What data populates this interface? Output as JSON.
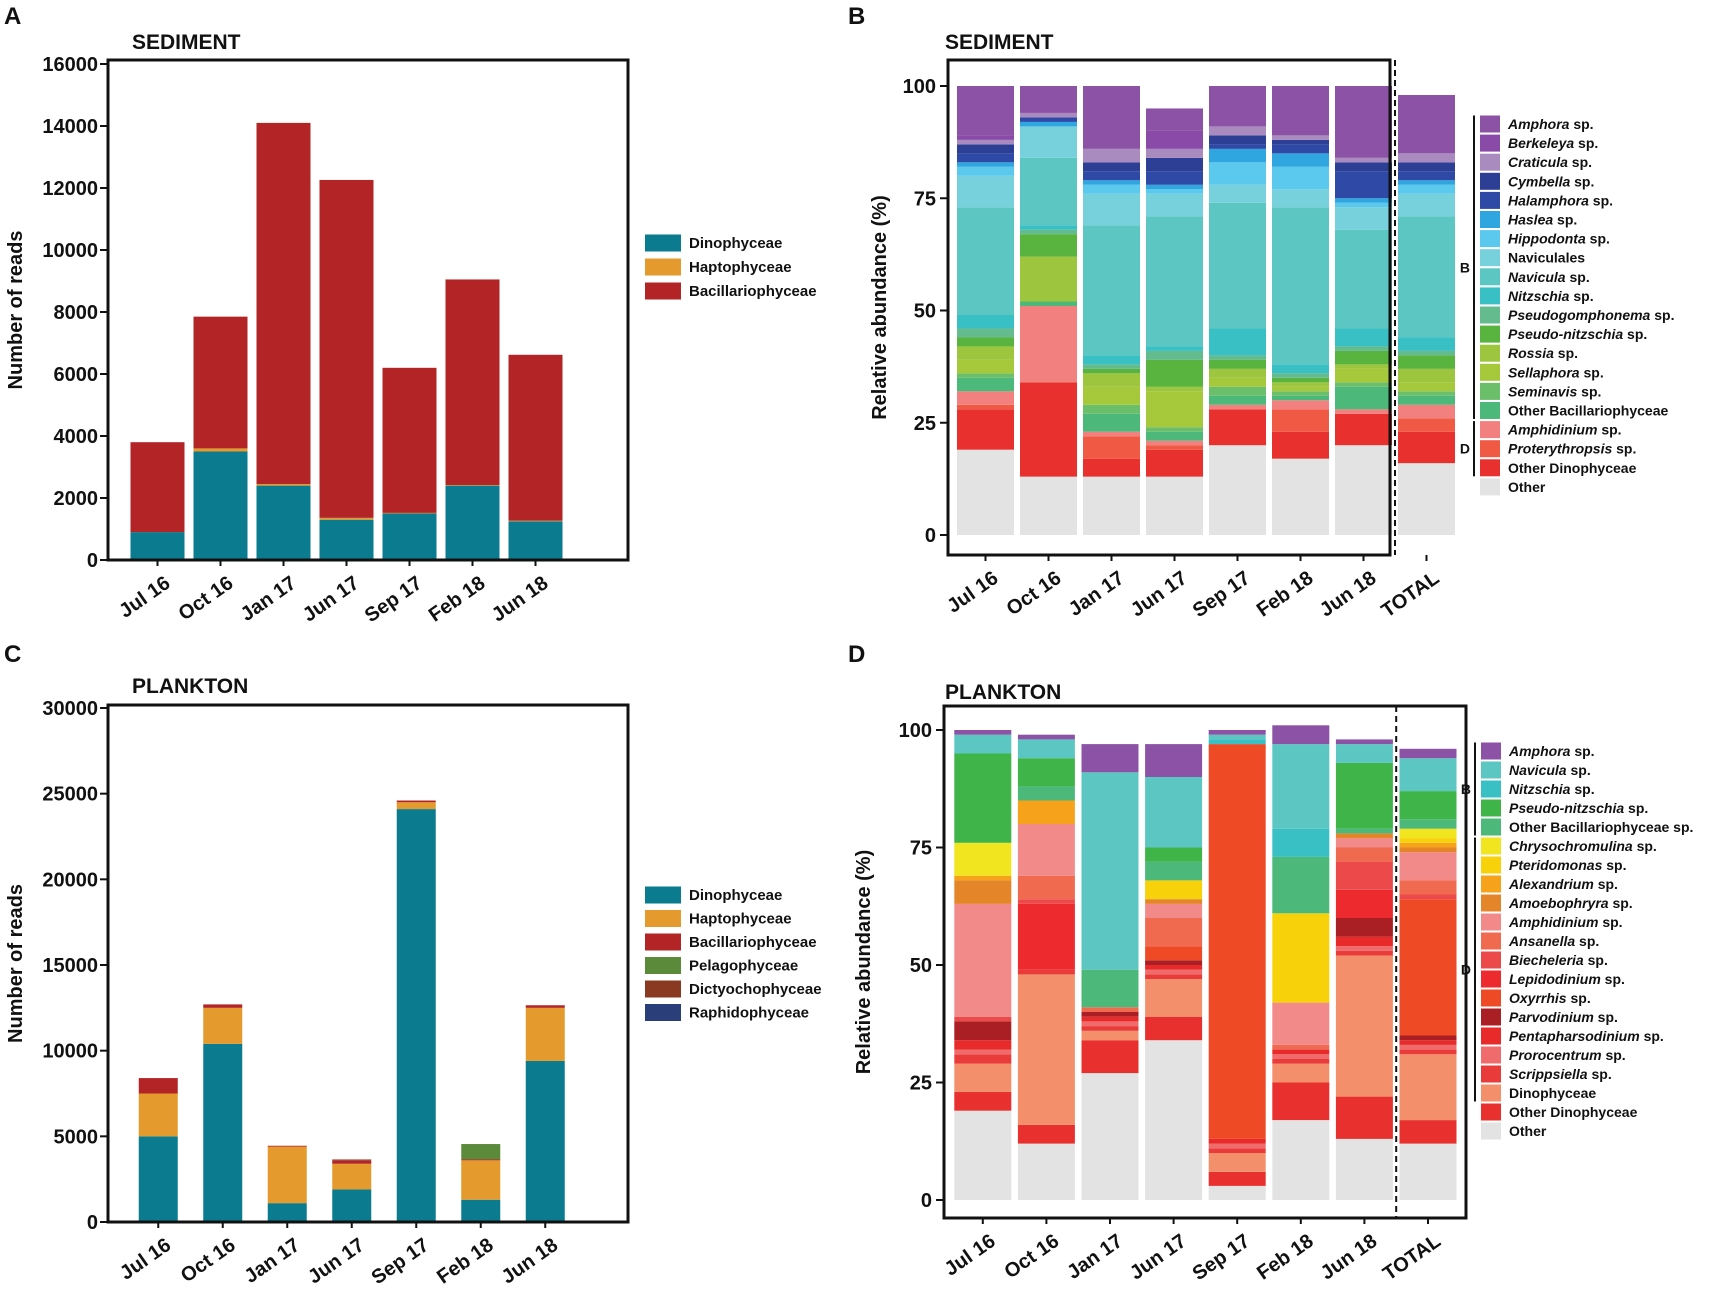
{
  "panels": {
    "A": "A",
    "B": "B",
    "C": "C",
    "D": "D"
  },
  "chart_data": [
    {
      "id": "A",
      "type": "bar",
      "stacked": true,
      "title": "SEDIMENT",
      "ylabel": "Number of reads",
      "xlabel": "",
      "ylim": [
        0,
        16000
      ],
      "yticks": [
        0,
        2000,
        4000,
        6000,
        8000,
        10000,
        12000,
        14000,
        16000
      ],
      "categories": [
        "Jul 16",
        "Oct 16",
        "Jan 17",
        "Jun 17",
        "Sep 17",
        "Feb 18",
        "Jun 18"
      ],
      "series": [
        {
          "name": "Dinophyceae",
          "color": "#0b7b8f",
          "values": [
            900,
            3500,
            2400,
            1300,
            1500,
            2400,
            1250
          ]
        },
        {
          "name": "Haptophyceae",
          "color": "#e49a2c",
          "values": [
            0,
            100,
            50,
            60,
            20,
            20,
            20
          ]
        },
        {
          "name": "Bacillariophyceae",
          "color": "#b22426",
          "values": [
            2900,
            4250,
            11650,
            10900,
            4680,
            6630,
            5350
          ]
        }
      ]
    },
    {
      "id": "B",
      "type": "bar",
      "stacked": true,
      "title": "SEDIMENT",
      "ylabel": "Relative abundance (%)",
      "xlabel": "",
      "ylim": [
        0,
        100
      ],
      "yticks": [
        0,
        25,
        50,
        75,
        100
      ],
      "categories": [
        "Jul 16",
        "Oct 16",
        "Jan 17",
        "Jun 17",
        "Sep 17",
        "Feb 18",
        "Jun 18",
        "TOTAL"
      ],
      "divider_after": 7,
      "legend_groups": [
        {
          "label": "B",
          "from": 0,
          "to": 15
        },
        {
          "label": "D",
          "from": 16,
          "to": 18
        }
      ],
      "series": [
        {
          "name": "Other",
          "color": "#e3e3e3",
          "values": [
            19,
            13,
            13,
            13,
            20,
            17,
            20,
            16
          ]
        },
        {
          "name": "Other Dinophyceae",
          "color": "#e8302e",
          "values": [
            9,
            21,
            4,
            6,
            8,
            6,
            7,
            7
          ]
        },
        {
          "name": "Proterythropsis sp.",
          "color": "#f05a45",
          "values": [
            1,
            0,
            5,
            1,
            0,
            5,
            0,
            3
          ]
        },
        {
          "name": "Amphidinium sp.",
          "color": "#f2807e",
          "values": [
            3,
            17,
            1,
            1,
            1,
            2,
            1,
            3
          ]
        },
        {
          "name": "Other Bacillariophyceae",
          "color": "#4cb87a",
          "values": [
            3,
            1,
            4,
            2,
            2,
            1,
            5,
            2
          ]
        },
        {
          "name": "Seminavis sp.",
          "color": "#6bbf6a",
          "values": [
            1,
            0,
            2,
            1,
            2,
            1,
            1,
            1
          ]
        },
        {
          "name": "Sellaphora sp.",
          "color": "#a5c93a",
          "values": [
            3,
            0,
            4,
            8,
            2,
            1,
            3,
            2
          ]
        },
        {
          "name": "Rossia sp.",
          "color": "#9dc63e",
          "values": [
            3,
            10,
            3,
            1,
            2,
            1,
            1,
            3
          ]
        },
        {
          "name": "Pseudo-nitzschia sp.",
          "color": "#58b43e",
          "values": [
            2,
            5,
            1,
            6,
            2,
            1,
            3,
            3
          ]
        },
        {
          "name": "Pseudogomphonema sp.",
          "color": "#64bb8e",
          "values": [
            2,
            1,
            1,
            2,
            1,
            1,
            1,
            1
          ]
        },
        {
          "name": "Nitzschia sp.",
          "color": "#39c0c4",
          "values": [
            3,
            1,
            2,
            1,
            6,
            2,
            4,
            3
          ]
        },
        {
          "name": "Navicula sp.",
          "color": "#5cc6c2",
          "values": [
            24,
            15,
            29,
            29,
            28,
            35,
            22,
            27
          ]
        },
        {
          "name": "Naviculales",
          "color": "#76d1dc",
          "values": [
            7,
            7,
            7,
            5,
            4,
            4,
            5,
            5
          ]
        },
        {
          "name": "Hippodonta sp.",
          "color": "#5bc8ee",
          "values": [
            2,
            0,
            2,
            1,
            5,
            5,
            1,
            2
          ]
        },
        {
          "name": "Haslea sp.",
          "color": "#2fa6e0",
          "values": [
            1,
            1,
            1,
            1,
            3,
            3,
            1,
            1
          ]
        },
        {
          "name": "Halamphora sp.",
          "color": "#2f49a6",
          "values": [
            2,
            1,
            2,
            3,
            1,
            2,
            6,
            2
          ]
        },
        {
          "name": "Cymbella sp.",
          "color": "#2d3f94",
          "values": [
            2,
            0,
            2,
            3,
            2,
            1,
            2,
            2
          ]
        },
        {
          "name": "Craticula sp.",
          "color": "#a98bc0",
          "values": [
            1,
            1,
            3,
            2,
            2,
            1,
            1,
            2
          ]
        },
        {
          "name": "Berkeleya sp.",
          "color": "#8a4aa8",
          "values": [
            1,
            0,
            0,
            4,
            0,
            0,
            0,
            0
          ]
        },
        {
          "name": "Amphora sp.",
          "color": "#8c52a6",
          "values": [
            11,
            6,
            14,
            5,
            9,
            11,
            16,
            13
          ]
        }
      ]
    },
    {
      "id": "C",
      "type": "bar",
      "stacked": true,
      "title": "PLANKTON",
      "ylabel": "Number of reads",
      "xlabel": "",
      "ylim": [
        0,
        30000
      ],
      "yticks": [
        0,
        5000,
        10000,
        15000,
        20000,
        25000,
        30000
      ],
      "categories": [
        "Jul 16",
        "Oct 16",
        "Jan 17",
        "Jun 17",
        "Sep 17",
        "Feb 18",
        "Jun 18"
      ],
      "series": [
        {
          "name": "Dinophyceae",
          "color": "#0b7b8f",
          "values": [
            5000,
            10400,
            1100,
            1900,
            24100,
            1300,
            9400
          ]
        },
        {
          "name": "Haptophyceae",
          "color": "#e49a2c",
          "values": [
            2500,
            2100,
            3300,
            1500,
            400,
            2300,
            3100
          ]
        },
        {
          "name": "Bacillariophyceae",
          "color": "#b22426",
          "values": [
            900,
            200,
            50,
            200,
            100,
            50,
            150
          ]
        },
        {
          "name": "Pelagophyceae",
          "color": "#5b8a3a",
          "values": [
            0,
            0,
            0,
            0,
            0,
            900,
            0
          ]
        },
        {
          "name": "Dictyochophyceae",
          "color": "#8b3a22",
          "values": [
            0,
            0,
            0,
            50,
            0,
            0,
            0
          ]
        },
        {
          "name": "Raphidophyceae",
          "color": "#2a3f7a",
          "values": [
            0,
            0,
            0,
            0,
            0,
            0,
            0
          ]
        }
      ]
    },
    {
      "id": "D",
      "type": "bar",
      "stacked": true,
      "title": "PLANKTON",
      "ylabel": "Relative abundance (%)",
      "xlabel": "",
      "ylim": [
        0,
        100
      ],
      "yticks": [
        0,
        25,
        50,
        75,
        100
      ],
      "categories": [
        "Jul 16",
        "Oct 16",
        "Jan 17",
        "Jun 17",
        "Sep 17",
        "Feb 18",
        "Jun 18",
        "TOTAL"
      ],
      "divider_after": 7,
      "legend_groups": [
        {
          "label": "B",
          "from": 0,
          "to": 4
        },
        {
          "label": "D",
          "from": 5,
          "to": 18
        }
      ],
      "series": [
        {
          "name": "Other",
          "color": "#e3e3e3",
          "values": [
            19,
            12,
            27,
            34,
            3,
            17,
            13,
            12
          ]
        },
        {
          "name": "Other Dinophyceae",
          "color": "#e8302e",
          "values": [
            4,
            4,
            7,
            5,
            3,
            8,
            9,
            5
          ]
        },
        {
          "name": "Dinophyceae",
          "color": "#f3906b",
          "values": [
            6,
            32,
            2,
            8,
            4,
            4,
            30,
            14
          ]
        },
        {
          "name": "Scrippsiella sp.",
          "color": "#ea3b3b",
          "values": [
            2,
            1,
            1,
            1,
            1,
            1,
            1,
            1
          ]
        },
        {
          "name": "Prorocentrum sp.",
          "color": "#f06b6b",
          "values": [
            1,
            0,
            1,
            1,
            1,
            1,
            1,
            1
          ]
        },
        {
          "name": "Pentapharsodinium sp.",
          "color": "#e92a2a",
          "values": [
            2,
            0,
            1,
            1,
            1,
            1,
            2,
            1
          ]
        },
        {
          "name": "Parvodinium sp.",
          "color": "#a91f24",
          "values": [
            4,
            0,
            1,
            1,
            0,
            0,
            4,
            1
          ]
        },
        {
          "name": "Oxyrrhis sp.",
          "color": "#ee4a26",
          "values": [
            0,
            0,
            0,
            3,
            84,
            0,
            0,
            29
          ]
        },
        {
          "name": "Lepidodinium sp.",
          "color": "#ed2a2e",
          "values": [
            0,
            14,
            0,
            0,
            0,
            0,
            6,
            0
          ]
        },
        {
          "name": "Biecheleria sp.",
          "color": "#ec4a4a",
          "values": [
            1,
            1,
            0,
            0,
            0,
            0,
            6,
            1
          ]
        },
        {
          "name": "Ansanella sp.",
          "color": "#f06a50",
          "values": [
            0,
            5,
            1,
            6,
            0,
            1,
            3,
            3
          ]
        },
        {
          "name": "Amphidinium sp.",
          "color": "#f28a8a",
          "values": [
            24,
            11,
            0,
            3,
            0,
            9,
            2,
            6
          ]
        },
        {
          "name": "Amoebophryra sp.",
          "color": "#e5852a",
          "values": [
            5,
            0,
            0,
            1,
            0,
            0,
            1,
            1
          ]
        },
        {
          "name": "Alexandrium sp.",
          "color": "#f7a21b",
          "values": [
            1,
            5,
            0,
            0,
            0,
            0,
            0,
            1
          ]
        },
        {
          "name": "Pteridomonas sp.",
          "color": "#f7d20a",
          "values": [
            0,
            0,
            0,
            4,
            0,
            19,
            0,
            1
          ]
        },
        {
          "name": "Chrysochromulina sp.",
          "color": "#f0e51e",
          "values": [
            7,
            0,
            0,
            0,
            0,
            0,
            0,
            2
          ]
        },
        {
          "name": "Other Bacillariophyceae",
          "color": "#4cb87a",
          "values": [
            0,
            3,
            8,
            4,
            0,
            12,
            1,
            2
          ]
        },
        {
          "name": "Pseudo-nitzschia sp.",
          "color": "#3fb549",
          "values": [
            19,
            6,
            0,
            3,
            0,
            0,
            14,
            6
          ]
        },
        {
          "name": "Nitzschia sp.",
          "color": "#39c0c4",
          "values": [
            0,
            0,
            0,
            0,
            1,
            6,
            0,
            0
          ]
        },
        {
          "name": "Navicula sp.",
          "color": "#5cc6c2",
          "values": [
            4,
            4,
            42,
            15,
            1,
            18,
            4,
            7
          ]
        },
        {
          "name": "Amphora sp.",
          "color": "#8c52a6",
          "values": [
            1,
            1,
            6,
            7,
            1,
            4,
            1,
            2
          ]
        }
      ]
    }
  ],
  "legends": {
    "A": [
      "Dinophyceae",
      "Haptophyceae",
      "Bacillariophyceae"
    ],
    "B": [
      "Amphora sp.",
      "Berkeleya sp.",
      "Craticula sp.",
      "Cymbella sp.",
      "Halamphora sp.",
      "Haslea sp.",
      "Hippodonta sp.",
      "Naviculales",
      "Navicula sp.",
      "Nitzschia sp.",
      "Pseudogomphonema sp.",
      "Pseudo-nitzschia sp.",
      "Rossia sp.",
      "Sellaphora sp.",
      "Seminavis sp.",
      "Other Bacillariophyceae",
      "Amphidinium sp.",
      "Proterythropsis sp.",
      "Other Dinophyceae",
      "Other"
    ],
    "C": [
      "Dinophyceae",
      "Haptophyceae",
      "Bacillariophyceae",
      "Pelagophyceae",
      "Dictyochophyceae",
      "Raphidophyceae"
    ],
    "D": [
      "Amphora sp.",
      "Navicula sp.",
      "Nitzschia sp.",
      "Pseudo-nitzschia sp.",
      "Other Bacillariophyceae sp.",
      "Chrysochromulina sp.",
      "Pteridomonas sp.",
      "Alexandrium sp.",
      "Amoebophryra sp.",
      "Amphidinium sp.",
      "Ansanella sp.",
      "Biecheleria sp.",
      "Lepidodinium sp.",
      "Oxyrrhis sp.",
      "Parvodinium sp.",
      "Pentapharsodinium sp.",
      "Prorocentrum sp.",
      "Scrippsiella sp.",
      "Dinophyceae",
      "Other Dinophyceae",
      "Other"
    ]
  }
}
